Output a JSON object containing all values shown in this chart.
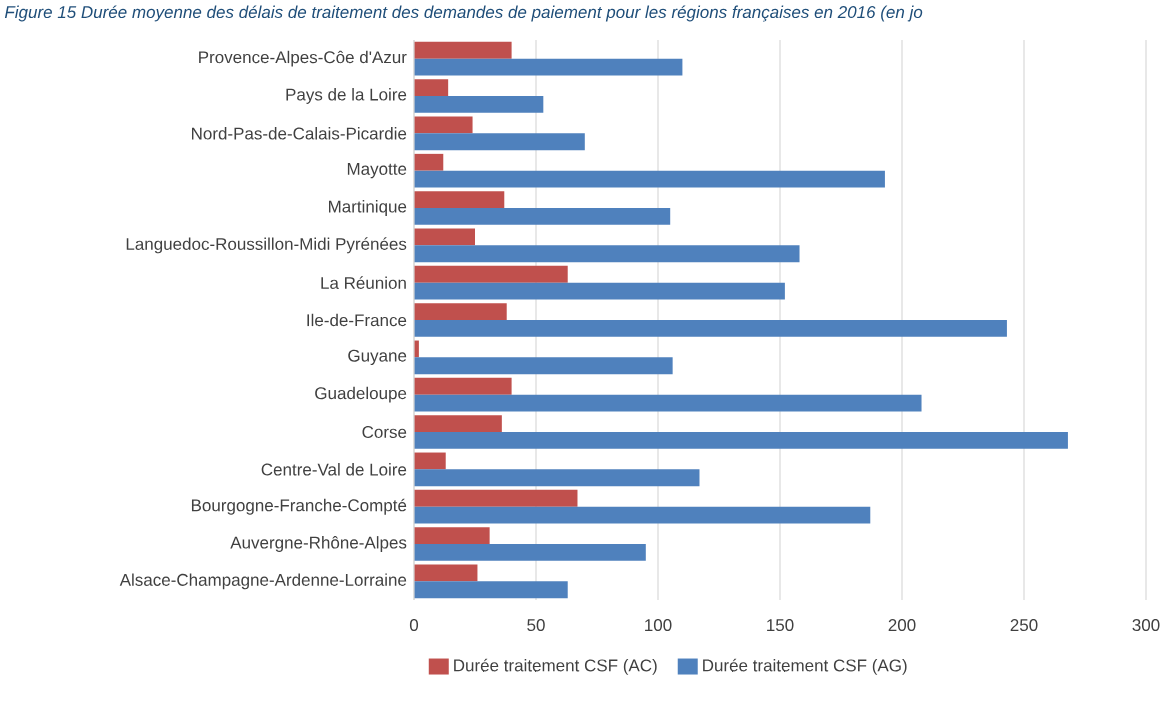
{
  "chart_data": {
    "type": "bar",
    "orientation": "horizontal",
    "title": "Figure 15 Durée moyenne des délais de traitement des demandes de paiement pour les régions françaises en 2016 (en jo",
    "categories": [
      "Provence-Alpes-Côe d'Azur",
      "Pays de la Loire",
      "Nord-Pas-de-Calais-Picardie",
      "Mayotte",
      "Martinique",
      "Languedoc-Roussillon-Midi Pyrénées",
      "La Réunion",
      "Ile-de-France",
      "Guyane",
      "Guadeloupe",
      "Corse",
      "Centre-Val de Loire",
      "Bourgogne-Franche-Compté",
      "Auvergne-Rhône-Alpes",
      "Alsace-Champagne-Ardenne-Lorraine"
    ],
    "series": [
      {
        "name": "Durée traitement CSF (AC)",
        "color": "#c0504d",
        "values": [
          40,
          14,
          24,
          12,
          37,
          25,
          63,
          38,
          2,
          40,
          36,
          13,
          67,
          31,
          26
        ]
      },
      {
        "name": "Durée traitement CSF (AG)",
        "color": "#4f81bd",
        "values": [
          110,
          53,
          70,
          193,
          105,
          158,
          152,
          243,
          106,
          208,
          268,
          117,
          187,
          95,
          63
        ]
      }
    ],
    "xlim": [
      0,
      300
    ],
    "xticks": [
      0,
      50,
      100,
      150,
      200,
      250,
      300
    ],
    "grid": "x",
    "legend": "bottom"
  }
}
